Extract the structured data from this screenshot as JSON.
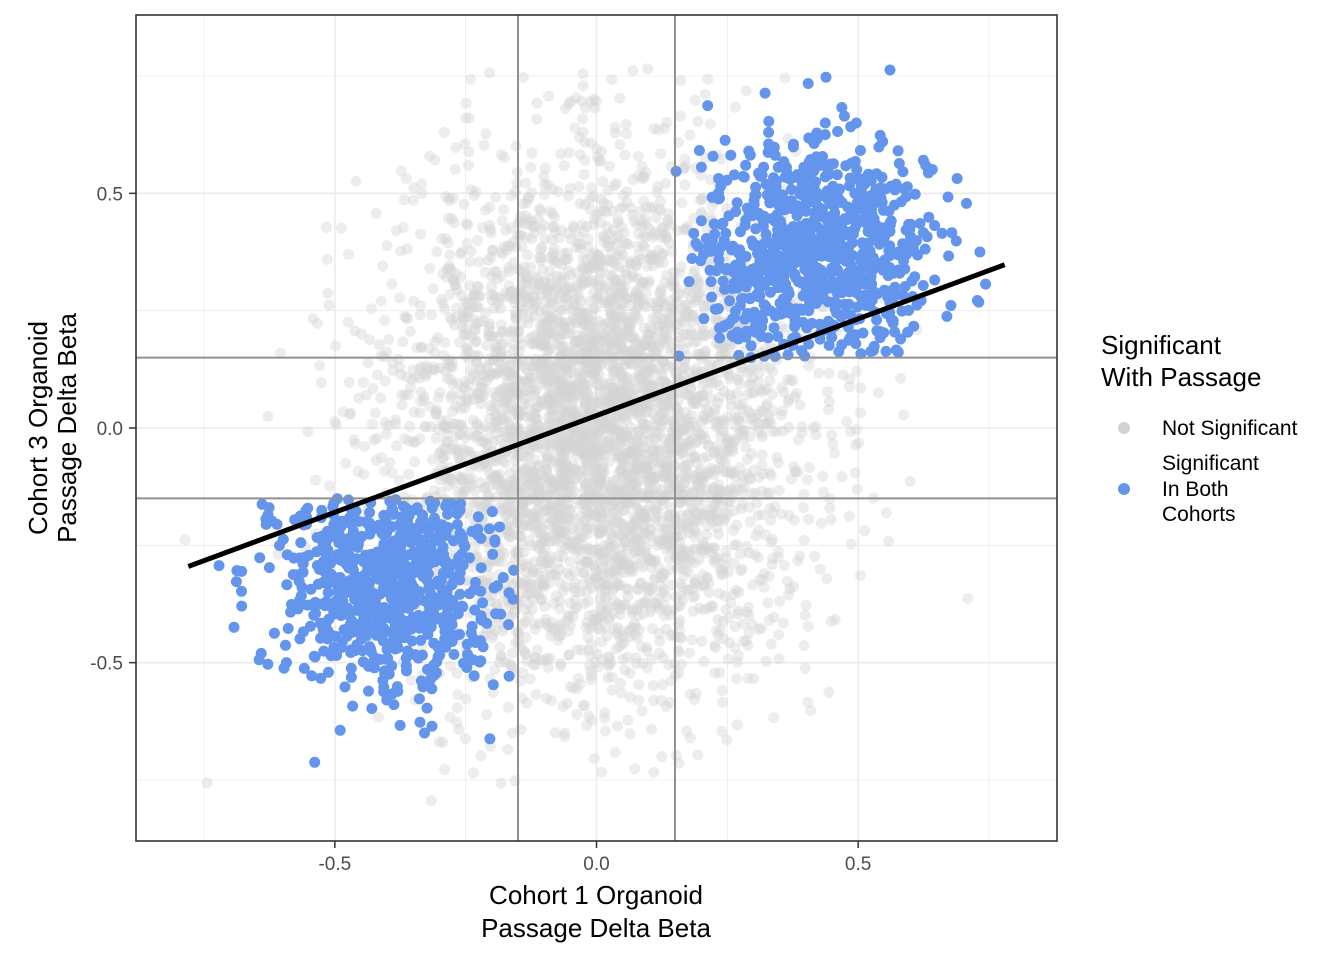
{
  "chart_data": {
    "type": "scatter",
    "title": "",
    "xlabel": [
      "Cohort 1 Organoid",
      "Passage Delta Beta"
    ],
    "ylabel": [
      "Cohort 3 Organoid",
      "Passage Delta Beta"
    ],
    "xlim": [
      -0.88,
      0.88
    ],
    "ylim": [
      -0.88,
      0.88
    ],
    "x_ticks": [
      -0.5,
      0.0,
      0.5
    ],
    "y_ticks": [
      -0.5,
      0.0,
      0.5
    ],
    "x_tick_labels": [
      "-0.5",
      "0.0",
      "0.5"
    ],
    "y_tick_labels": [
      "-0.5",
      "0.0",
      "0.5"
    ],
    "grid": true,
    "threshold_lines": {
      "x": [
        -0.15,
        0.15
      ],
      "y": [
        -0.15,
        0.15
      ]
    },
    "regression_line": {
      "x": [
        -0.78,
        0.78
      ],
      "y": [
        -0.295,
        0.348
      ]
    },
    "legend": {
      "title": [
        "Significant",
        "With Passage"
      ],
      "placement": "right",
      "entries": [
        {
          "label": [
            "Not Significant"
          ],
          "color": "#d3d3d3"
        },
        {
          "label": [
            "Significant",
            "In Both",
            "Cohorts"
          ],
          "color": "#6495ed"
        }
      ]
    },
    "series": [
      {
        "name": "Not Significant",
        "color": "#d3d3d3",
        "distribution": {
          "x_mean": 0.0,
          "x_sd": 0.19,
          "y_mean": 0.0,
          "y_sd": 0.27,
          "approx_count": 4500
        }
      },
      {
        "name": "Significant In Both Cohorts",
        "color": "#6495ed",
        "clusters": [
          {
            "x_range": [
              0.15,
              0.79
            ],
            "y_range": [
              0.15,
              0.8
            ],
            "x_center": 0.42,
            "y_center": 0.36,
            "approx_count": 900
          },
          {
            "x_range": [
              -0.75,
              -0.15
            ],
            "y_range": [
              -0.78,
              -0.15
            ],
            "x_center": -0.4,
            "y_center": -0.33,
            "approx_count": 800
          }
        ]
      }
    ]
  }
}
